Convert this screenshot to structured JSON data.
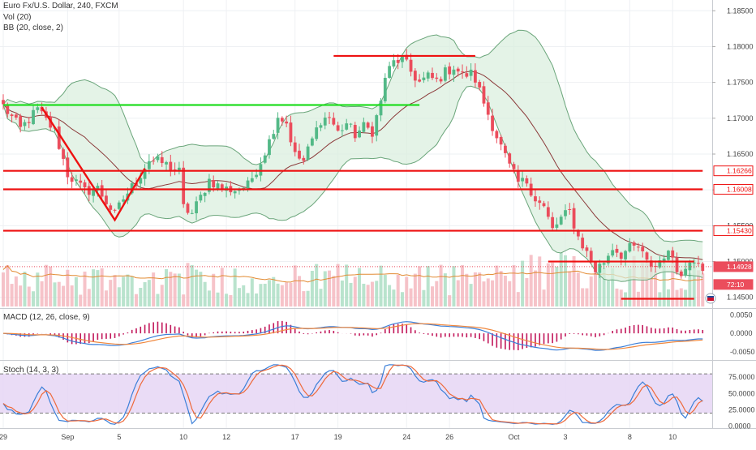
{
  "title": "Euro Fx/U.S. Dollar, 240, FXCM",
  "legend": {
    "vol": "Vol (20)",
    "bb": "BB (20, close, 2)",
    "macd": "MACD (12, 26, close, 9)",
    "stoch": "Stoch (14, 3, 3)"
  },
  "colors": {
    "bull": "#53b987",
    "bear": "#eb4d5c",
    "bb_line": "#6aa57a",
    "bb_fill": "#d8eedd",
    "basis": "#8b3a3a",
    "hline_red": "#ee1111",
    "hline_green": "#22dd22",
    "macd": "#3b7fd8",
    "signal": "#f0883e",
    "hist": "#c2185b",
    "stoch_k": "#3b7fd8",
    "stoch_d": "#ee6a3b",
    "stoch_band": "#e6d6f5"
  },
  "x_axis_labels": [
    {
      "i": 0,
      "label": "29"
    },
    {
      "i": 15,
      "label": "Sep"
    },
    {
      "i": 27,
      "label": "5"
    },
    {
      "i": 42,
      "label": "10"
    },
    {
      "i": 52,
      "label": "12"
    },
    {
      "i": 68,
      "label": "17"
    },
    {
      "i": 78,
      "label": "19"
    },
    {
      "i": 94,
      "label": "24"
    },
    {
      "i": 104,
      "label": "26"
    },
    {
      "i": 119,
      "label": "Oct"
    },
    {
      "i": 131,
      "label": "3"
    },
    {
      "i": 146,
      "label": "8"
    },
    {
      "i": 156,
      "label": "10"
    }
  ],
  "price_axis": {
    "ticks": [
      "1.18500",
      "1.18000",
      "1.17500",
      "1.17000",
      "1.16500",
      "1.16000",
      "1.15500",
      "1.15000",
      "1.14500"
    ],
    "range": [
      1.1435,
      1.1865
    ]
  },
  "macd_axis": {
    "ticks": [
      "0.0050",
      "0.0000",
      "-0.0050"
    ],
    "range": [
      -0.0072,
      0.0066
    ]
  },
  "stoch_axis": {
    "ticks": [
      "75.0000",
      "50.0000",
      "25.0000",
      "0.0000"
    ],
    "range": [
      -3,
      100
    ]
  },
  "price_labels": [
    {
      "value": 1.16266,
      "text": "1.16266",
      "color": "#ee1111",
      "fill": true
    },
    {
      "value": 1.16008,
      "text": "1.16008",
      "color": "#ee1111",
      "fill": true
    },
    {
      "value": 1.1543,
      "text": "1.15430",
      "color": "#ee1111",
      "fill": true
    },
    {
      "value": 1.14928,
      "text": "1.14928",
      "color": "#eb4d5c",
      "fill": false
    },
    {
      "value": 1.1468,
      "text": "72:10",
      "color": "#eb4d5c",
      "fill": false
    }
  ],
  "current_price": 1.14928,
  "annotations": {
    "hlines": [
      {
        "color": "#ee1111",
        "y": 1.16266,
        "i1": 0,
        "i2": 163
      },
      {
        "color": "#ee1111",
        "y": 1.16008,
        "i1": 0,
        "i2": 163
      },
      {
        "color": "#ee1111",
        "y": 1.1543,
        "i1": 0,
        "i2": 163
      },
      {
        "color": "#22dd22",
        "y": 1.17185,
        "i1": 0,
        "i2": 97
      },
      {
        "color": "#ee1111",
        "y": 1.1787,
        "i1": 77,
        "i2": 110
      },
      {
        "color": "#ee1111",
        "y": 1.15,
        "i1": 127,
        "i2": 161
      },
      {
        "color": "#ee1111",
        "y": 1.1448,
        "i1": 144,
        "i2": 161
      }
    ],
    "polyline": {
      "color": "#ee1111",
      "points": [
        [
          9,
          1.1715
        ],
        [
          26,
          1.1558
        ],
        [
          33,
          1.163
        ]
      ]
    }
  },
  "chart_data": {
    "type": "candlestick",
    "title": "Euro Fx/U.S. Dollar, 240, FXCM",
    "ylim": [
      1.1435,
      1.1865
    ],
    "x_ticks": [
      "29",
      "Sep",
      "5",
      "10",
      "12",
      "17",
      "19",
      "24",
      "26",
      "Oct",
      "3",
      "8",
      "10"
    ],
    "waypoints": [
      [
        0,
        1.1717
      ],
      [
        4,
        1.1685
      ],
      [
        8,
        1.1712
      ],
      [
        12,
        1.1682
      ],
      [
        15,
        1.1622
      ],
      [
        19,
        1.1598
      ],
      [
        22,
        1.1602
      ],
      [
        26,
        1.1565
      ],
      [
        28,
        1.1588
      ],
      [
        31,
        1.1612
      ],
      [
        34,
        1.1642
      ],
      [
        37,
        1.1638
      ],
      [
        41,
        1.1625
      ],
      [
        42,
        1.1575
      ],
      [
        44,
        1.1567
      ],
      [
        46,
        1.159
      ],
      [
        48,
        1.1614
      ],
      [
        51,
        1.1602
      ],
      [
        54,
        1.16
      ],
      [
        57,
        1.1606
      ],
      [
        60,
        1.164
      ],
      [
        62,
        1.1668
      ],
      [
        64,
        1.1704
      ],
      [
        66,
        1.1694
      ],
      [
        68,
        1.1648
      ],
      [
        70,
        1.164
      ],
      [
        72,
        1.167
      ],
      [
        74,
        1.1698
      ],
      [
        76,
        1.1702
      ],
      [
        78,
        1.168
      ],
      [
        80,
        1.1693
      ],
      [
        82,
        1.1677
      ],
      [
        84,
        1.1688
      ],
      [
        86,
        1.1682
      ],
      [
        88,
        1.1722
      ],
      [
        89,
        1.1758
      ],
      [
        91,
        1.1778
      ],
      [
        93,
        1.1783
      ],
      [
        95,
        1.1765
      ],
      [
        97,
        1.175
      ],
      [
        99,
        1.1758
      ],
      [
        101,
        1.1752
      ],
      [
        103,
        1.1764
      ],
      [
        105,
        1.1772
      ],
      [
        107,
        1.176
      ],
      [
        109,
        1.1762
      ],
      [
        110,
        1.1754
      ],
      [
        112,
        1.1722
      ],
      [
        114,
        1.169
      ],
      [
        116,
        1.166
      ],
      [
        118,
        1.1632
      ],
      [
        120,
        1.161
      ],
      [
        122,
        1.1612
      ],
      [
        124,
        1.1588
      ],
      [
        126,
        1.1575
      ],
      [
        128,
        1.1544
      ],
      [
        130,
        1.156
      ],
      [
        132,
        1.157
      ],
      [
        134,
        1.1534
      ],
      [
        136,
        1.1512
      ],
      [
        138,
        1.1488
      ],
      [
        140,
        1.15
      ],
      [
        142,
        1.152
      ],
      [
        144,
        1.151
      ],
      [
        146,
        1.1518
      ],
      [
        148,
        1.152
      ],
      [
        150,
        1.1498
      ],
      [
        152,
        1.1494
      ],
      [
        154,
        1.151
      ],
      [
        156,
        1.1508
      ],
      [
        158,
        1.1478
      ],
      [
        160,
        1.1505
      ],
      [
        162,
        1.1504
      ],
      [
        163,
        1.1493
      ]
    ]
  }
}
